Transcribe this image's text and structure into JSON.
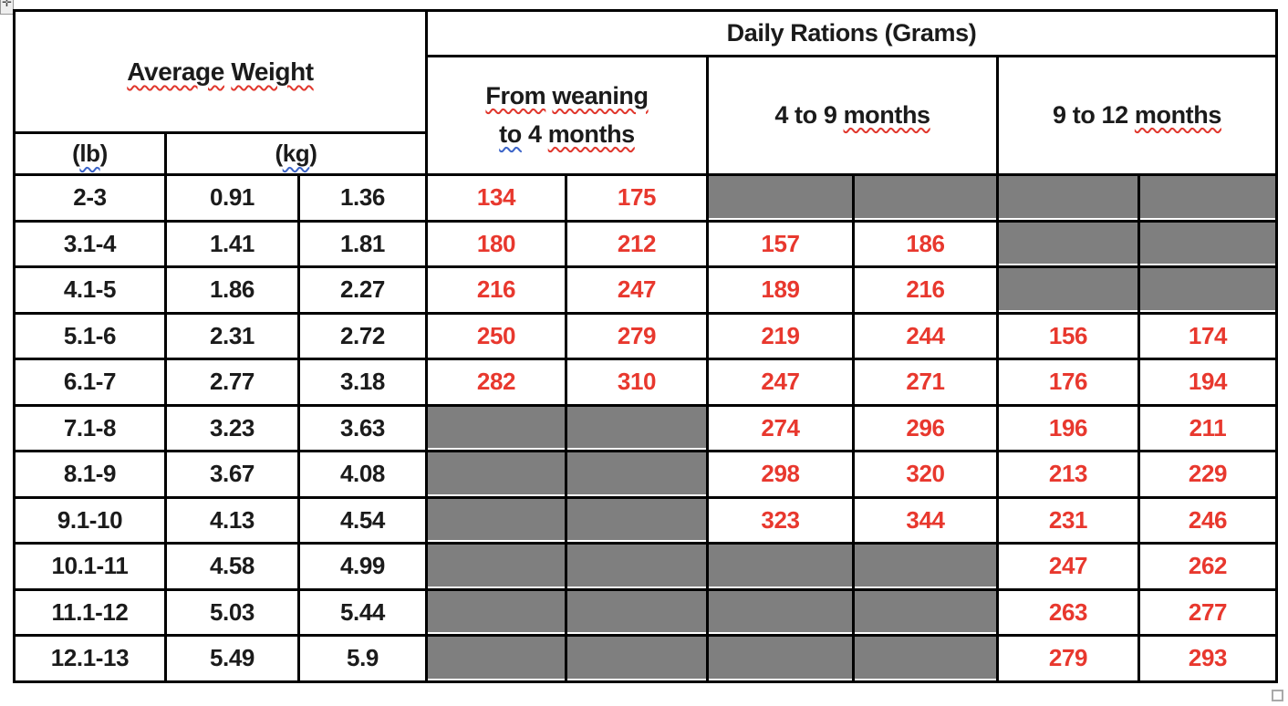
{
  "colors": {
    "ration_red": "#e8382e",
    "blocked_gray": "#7f7f7f",
    "border_black": "#000000",
    "squiggle_red": "#e0362c",
    "squiggle_blue": "#3c64c8"
  },
  "icons": {
    "move_handle_glyph": "✛"
  },
  "table": {
    "daily_rations_title": "Daily Rations (Grams)",
    "average_weight": {
      "word1": "Average",
      "word2": "Weight"
    },
    "lb_header": {
      "open": "(",
      "label": "lb",
      "close": ")"
    },
    "kg_header": {
      "open": "(",
      "label": "kg",
      "close": ")"
    },
    "weaning_header": {
      "line1_word1": "From",
      "line1_word2": "weaning",
      "line2_word1": "to",
      "line2_word2": "4",
      "line2_word3": "months"
    },
    "months_4_9": {
      "prefix": "4 to 9",
      "suffix": "months"
    },
    "months_9_12": {
      "prefix": "9 to 12",
      "suffix": "months"
    },
    "rows": [
      [
        "2-3",
        "0.91",
        "1.36",
        "134",
        "175",
        null,
        null,
        null,
        null
      ],
      [
        "3.1-4",
        "1.41",
        "1.81",
        "180",
        "212",
        "157",
        "186",
        null,
        null
      ],
      [
        "4.1-5",
        "1.86",
        "2.27",
        "216",
        "247",
        "189",
        "216",
        null,
        null
      ],
      [
        "5.1-6",
        "2.31",
        "2.72",
        "250",
        "279",
        "219",
        "244",
        "156",
        "174"
      ],
      [
        "6.1-7",
        "2.77",
        "3.18",
        "282",
        "310",
        "247",
        "271",
        "176",
        "194"
      ],
      [
        "7.1-8",
        "3.23",
        "3.63",
        null,
        null,
        "274",
        "296",
        "196",
        "211"
      ],
      [
        "8.1-9",
        "3.67",
        "4.08",
        null,
        null,
        "298",
        "320",
        "213",
        "229"
      ],
      [
        "9.1-10",
        "4.13",
        "4.54",
        null,
        null,
        "323",
        "344",
        "231",
        "246"
      ],
      [
        "10.1-11",
        "4.58",
        "4.99",
        null,
        null,
        null,
        null,
        "247",
        "262"
      ],
      [
        "11.1-12",
        "5.03",
        "5.44",
        null,
        null,
        null,
        null,
        "263",
        "277"
      ],
      [
        "12.1-13",
        "5.49",
        "5.9",
        null,
        null,
        null,
        null,
        "279",
        "293"
      ]
    ]
  }
}
